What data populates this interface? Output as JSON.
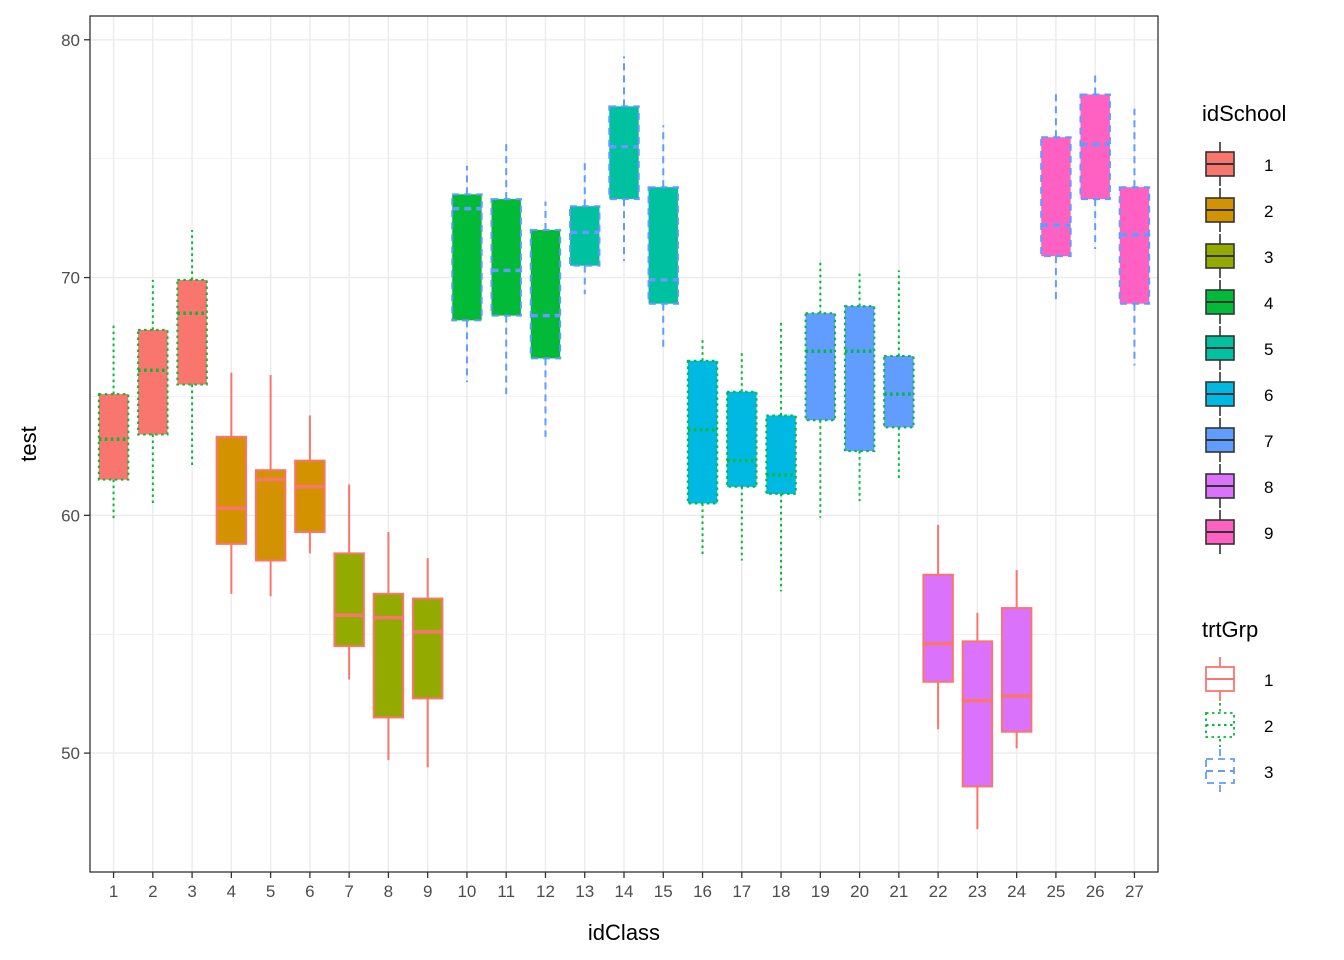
{
  "chart_data": {
    "type": "boxplot",
    "xlabel": "idClass",
    "ylabel": "test",
    "ylim": [
      45,
      81
    ],
    "yticks": [
      50,
      60,
      70,
      80
    ],
    "grid": true,
    "legend_position": "right",
    "fill_legend": {
      "title": "idSchool",
      "entries": [
        {
          "label": "1",
          "color": "#F8766D"
        },
        {
          "label": "2",
          "color": "#D39200"
        },
        {
          "label": "3",
          "color": "#93AA00"
        },
        {
          "label": "4",
          "color": "#00BA38"
        },
        {
          "label": "5",
          "color": "#00C19F"
        },
        {
          "label": "6",
          "color": "#00B9E3"
        },
        {
          "label": "7",
          "color": "#619CFF"
        },
        {
          "label": "8",
          "color": "#DB72FB"
        },
        {
          "label": "9",
          "color": "#FF61C3"
        }
      ]
    },
    "linetype_legend": {
      "title": "trtGrp",
      "entries": [
        {
          "label": "1",
          "color": "#F8766D",
          "dash": "solid"
        },
        {
          "label": "2",
          "color": "#00BA38",
          "dash": "dotted"
        },
        {
          "label": "3",
          "color": "#619CFF",
          "dash": "dashed"
        }
      ]
    },
    "boxes": [
      {
        "idClass": "1",
        "idSchool": 1,
        "trtGrp": 2,
        "min": 59.8,
        "q1": 61.5,
        "median": 63.2,
        "q3": 65.1,
        "max": 68.1
      },
      {
        "idClass": "2",
        "idSchool": 1,
        "trtGrp": 2,
        "min": 60.4,
        "q1": 63.4,
        "median": 66.1,
        "q3": 67.8,
        "max": 69.9
      },
      {
        "idClass": "3",
        "idSchool": 1,
        "trtGrp": 2,
        "min": 62.0,
        "q1": 65.5,
        "median": 68.5,
        "q3": 69.9,
        "max": 72.0
      },
      {
        "idClass": "4",
        "idSchool": 2,
        "trtGrp": 1,
        "min": 56.7,
        "q1": 58.8,
        "median": 60.3,
        "q3": 63.3,
        "max": 66.0
      },
      {
        "idClass": "5",
        "idSchool": 2,
        "trtGrp": 1,
        "min": 56.6,
        "q1": 58.1,
        "median": 61.5,
        "q3": 61.9,
        "max": 65.9
      },
      {
        "idClass": "6",
        "idSchool": 2,
        "trtGrp": 1,
        "min": 58.4,
        "q1": 59.3,
        "median": 61.2,
        "q3": 62.3,
        "max": 64.2
      },
      {
        "idClass": "7",
        "idSchool": 3,
        "trtGrp": 1,
        "min": 53.1,
        "q1": 54.5,
        "median": 55.8,
        "q3": 58.4,
        "max": 61.3
      },
      {
        "idClass": "8",
        "idSchool": 3,
        "trtGrp": 1,
        "min": 49.7,
        "q1": 51.5,
        "median": 55.7,
        "q3": 56.7,
        "max": 59.3
      },
      {
        "idClass": "9",
        "idSchool": 3,
        "trtGrp": 1,
        "min": 49.4,
        "q1": 52.3,
        "median": 55.1,
        "q3": 56.5,
        "max": 58.2
      },
      {
        "idClass": "10",
        "idSchool": 4,
        "trtGrp": 3,
        "min": 65.6,
        "q1": 68.2,
        "median": 72.9,
        "q3": 73.5,
        "max": 74.7
      },
      {
        "idClass": "11",
        "idSchool": 4,
        "trtGrp": 3,
        "min": 65.1,
        "q1": 68.4,
        "median": 70.3,
        "q3": 73.3,
        "max": 75.7
      },
      {
        "idClass": "12",
        "idSchool": 4,
        "trtGrp": 3,
        "min": 63.3,
        "q1": 66.6,
        "median": 68.4,
        "q3": 72.0,
        "max": 73.2
      },
      {
        "idClass": "13",
        "idSchool": 5,
        "trtGrp": 3,
        "min": 69.3,
        "q1": 70.5,
        "median": 71.9,
        "q3": 73.0,
        "max": 74.9
      },
      {
        "idClass": "14",
        "idSchool": 5,
        "trtGrp": 3,
        "min": 70.7,
        "q1": 73.3,
        "median": 75.5,
        "q3": 77.2,
        "max": 79.3
      },
      {
        "idClass": "15",
        "idSchool": 5,
        "trtGrp": 3,
        "min": 67.0,
        "q1": 68.9,
        "median": 69.9,
        "q3": 73.8,
        "max": 76.4
      },
      {
        "idClass": "16",
        "idSchool": 6,
        "trtGrp": 2,
        "min": 58.3,
        "q1": 60.5,
        "median": 63.6,
        "q3": 66.5,
        "max": 67.4
      },
      {
        "idClass": "17",
        "idSchool": 6,
        "trtGrp": 2,
        "min": 58.1,
        "q1": 61.2,
        "median": 62.3,
        "q3": 65.2,
        "max": 66.9
      },
      {
        "idClass": "18",
        "idSchool": 6,
        "trtGrp": 2,
        "min": 56.8,
        "q1": 60.9,
        "median": 61.7,
        "q3": 64.2,
        "max": 68.1
      },
      {
        "idClass": "19",
        "idSchool": 7,
        "trtGrp": 2,
        "min": 59.9,
        "q1": 64.0,
        "median": 66.9,
        "q3": 68.5,
        "max": 70.7
      },
      {
        "idClass": "20",
        "idSchool": 7,
        "trtGrp": 2,
        "min": 60.6,
        "q1": 62.7,
        "median": 66.9,
        "q3": 68.8,
        "max": 70.3
      },
      {
        "idClass": "21",
        "idSchool": 7,
        "trtGrp": 2,
        "min": 61.5,
        "q1": 63.7,
        "median": 65.1,
        "q3": 66.7,
        "max": 70.3
      },
      {
        "idClass": "22",
        "idSchool": 8,
        "trtGrp": 1,
        "min": 51.0,
        "q1": 53.0,
        "median": 54.6,
        "q3": 57.5,
        "max": 59.6
      },
      {
        "idClass": "23",
        "idSchool": 8,
        "trtGrp": 1,
        "min": 46.8,
        "q1": 48.6,
        "median": 52.2,
        "q3": 54.7,
        "max": 55.9
      },
      {
        "idClass": "24",
        "idSchool": 8,
        "trtGrp": 1,
        "min": 50.2,
        "q1": 50.9,
        "median": 52.4,
        "q3": 56.1,
        "max": 57.7
      },
      {
        "idClass": "25",
        "idSchool": 9,
        "trtGrp": 3,
        "min": 69.0,
        "q1": 70.9,
        "median": 72.2,
        "q3": 75.9,
        "max": 77.8
      },
      {
        "idClass": "26",
        "idSchool": 9,
        "trtGrp": 3,
        "min": 71.2,
        "q1": 73.3,
        "median": 75.6,
        "q3": 77.7,
        "max": 78.7
      },
      {
        "idClass": "27",
        "idSchool": 9,
        "trtGrp": 3,
        "min": 66.3,
        "q1": 68.9,
        "median": 71.8,
        "q3": 73.8,
        "max": 77.1
      }
    ]
  }
}
